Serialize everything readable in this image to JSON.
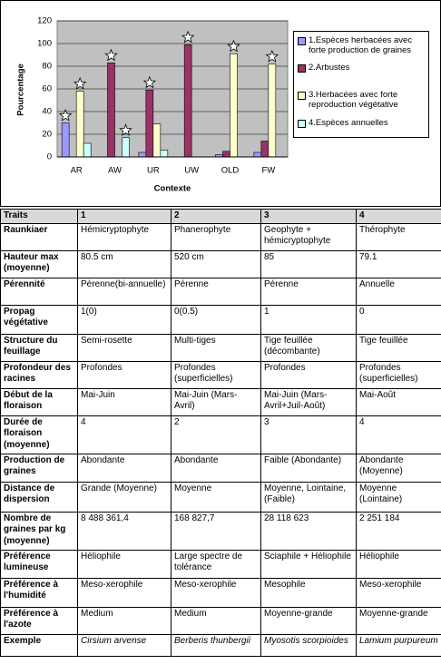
{
  "chart_data": {
    "type": "bar",
    "y_label": "Pourcentage",
    "x_label": "Contexte",
    "categories": [
      "AR",
      "AW",
      "UR",
      "UW",
      "OLD",
      "FW"
    ],
    "ylim": [
      0,
      120
    ],
    "yticks": [
      0,
      20,
      40,
      60,
      80,
      100,
      120
    ],
    "grid": true,
    "series": [
      {
        "name": "1.Espèces herbacées avec forte production de graines",
        "color": "#9999ff",
        "values": [
          30,
          0,
          4,
          0,
          2,
          4
        ],
        "starred": [
          true,
          false,
          false,
          false,
          false,
          false
        ]
      },
      {
        "name": "2.Arbustes",
        "color": "#993366",
        "values": [
          0,
          83,
          59,
          99,
          5,
          14
        ],
        "starred": [
          false,
          true,
          true,
          true,
          false,
          false
        ]
      },
      {
        "name": "3.Herbacées avec forte reproduction végétative",
        "color": "#ffffcc",
        "values": [
          58,
          0,
          29,
          0,
          91,
          82
        ],
        "starred": [
          true,
          false,
          false,
          false,
          true,
          true
        ]
      },
      {
        "name": "4.Espèces annuelles",
        "color": "#ccffff",
        "values": [
          12,
          17,
          6,
          0,
          0,
          0
        ],
        "starred": [
          false,
          true,
          false,
          false,
          false,
          false
        ]
      }
    ]
  },
  "table": {
    "header": [
      "Traits",
      "1",
      "2",
      "3",
      "4"
    ],
    "rows": [
      [
        "Raunkiaer",
        "Hémicryptophyte",
        "Phanerophyte",
        "Geophyte + hémicryptophyte",
        "Thérophyte"
      ],
      [
        "Hauteur max (moyenne)",
        "80.5 cm",
        "520 cm",
        "85",
        "79.1"
      ],
      [
        "Pérennité",
        "Pérenne(bi-annuelle)",
        "Pérenne",
        "Pérenne",
        "Annuelle"
      ],
      [
        "Propag végétative",
        "1(0)",
        "0(0.5)",
        "1",
        "0"
      ],
      [
        "Structure du feuillage",
        "Semi-rosette",
        "Multi-tiges",
        "Tige feuillée (décombante)",
        "Tige feuillée"
      ],
      [
        "Profondeur des racines",
        "Profondes",
        "Profondes (superficielles)",
        "Profondes",
        "Profondes (superficielles)"
      ],
      [
        "Début de la floraison",
        "Mai-Juin",
        "Mai-Juin (Mars-Avril)",
        "Mai-Juin (Mars-Avril+Juil-Août)",
        "Mai-Août"
      ],
      [
        "Durée de floraison (moyenne)",
        "4",
        "2",
        "3",
        "4"
      ],
      [
        "Production de graines",
        "Abondante",
        "Abondante",
        "Faible (Abondante)",
        "Abondante (Moyenne)"
      ],
      [
        "Distance de dispersion",
        "Grande (Moyenne)",
        "Moyenne",
        "Moyenne, Lointaine, (Faible)",
        "Moyenne (Lointaine)"
      ],
      [
        "Nombre de graines par kg (moyenne)",
        "8 488 361,4",
        "168 827,7",
        "28 118 623",
        "2 251 184"
      ],
      [
        "Préférence lumineuse",
        "Héliophile",
        "Large spectre de tolérance",
        "Sciaphile + Héliophile",
        "Héliophile"
      ],
      [
        "Préférence à l'humidité",
        "Meso-xerophile",
        "Meso-xerophile",
        "Mesophile",
        "Meso-xerophile"
      ],
      [
        "Préférence à l'azote",
        "Medium",
        "Medium",
        "Moyenne-grande",
        "Moyenne-grande"
      ],
      [
        "Exemple",
        "Cirsium arvense",
        "Berberis thunbergii",
        "Myosotis scorpioides",
        "Lamium purpureum"
      ]
    ]
  }
}
